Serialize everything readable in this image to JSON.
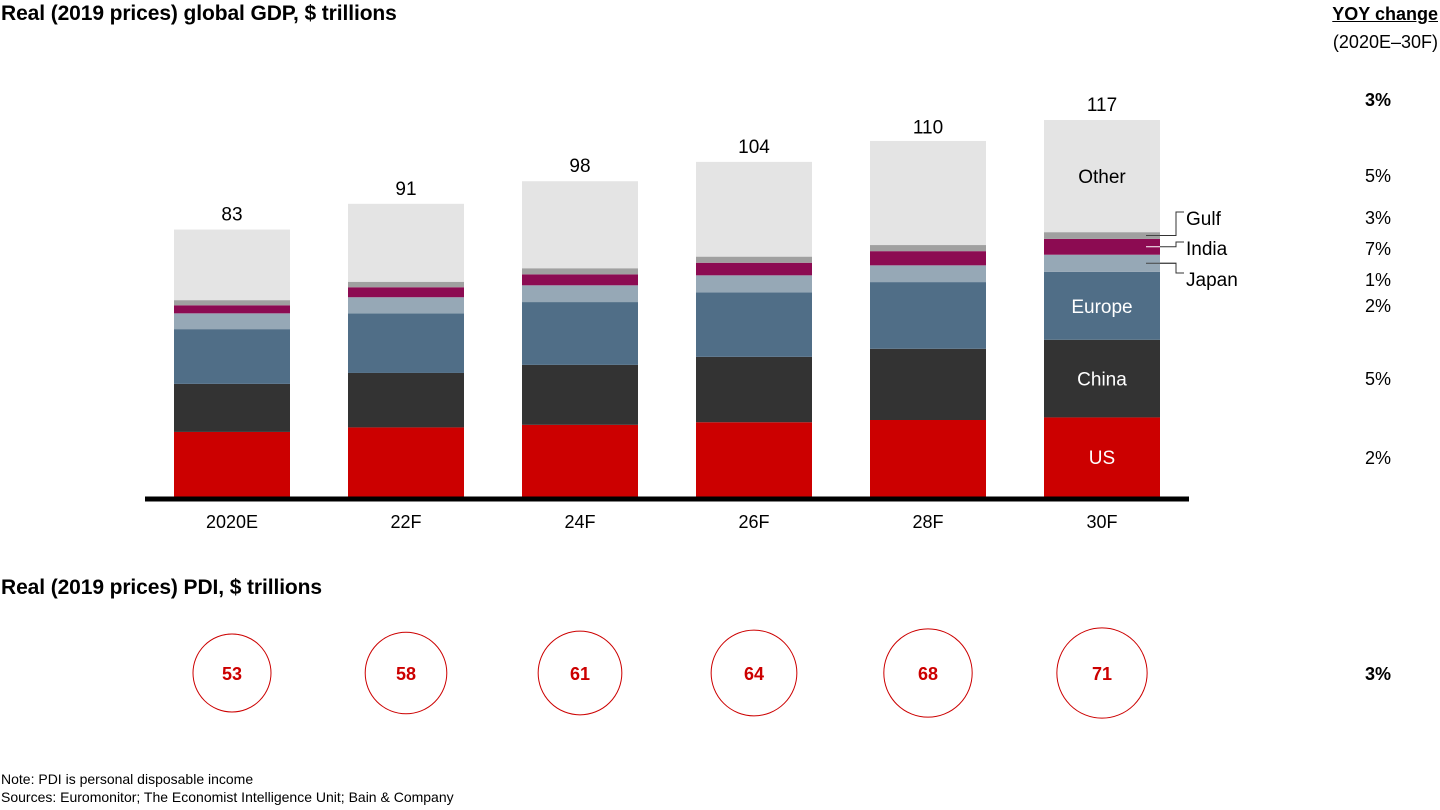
{
  "gdp_title": "Real (2019 prices) global GDP, $ trillions",
  "pdi_title": "Real (2019 prices) PDI, $ trillions",
  "yoy_header": {
    "title": "YOY change",
    "period": "(2020E–30F)"
  },
  "notes": {
    "note": "Note: PDI is personal disposable income",
    "sources": "Sources: Euromonitor; The Economist Intelligence Unit; Bain & Company"
  },
  "chart_data": [
    {
      "type": "bar",
      "stacked": true,
      "title": "Real (2019 prices) global GDP, $ trillions",
      "categories": [
        "2020E",
        "22F",
        "24F",
        "26F",
        "28F",
        "30F"
      ],
      "totals": [
        83,
        91,
        98,
        104,
        110,
        117
      ],
      "total_labels": [
        "83",
        "91",
        "98",
        "104",
        "110",
        "117"
      ],
      "series": [
        {
          "name": "US",
          "color": "#cc0000",
          "values": [
            20.2,
            21.6,
            22.4,
            23.2,
            23.9,
            24.7
          ],
          "yoy": "2%"
        },
        {
          "name": "China",
          "color": "#333333",
          "values": [
            14.9,
            16.9,
            18.6,
            20.3,
            22.1,
            24.1
          ],
          "yoy": "5%"
        },
        {
          "name": "Europe",
          "color": "#506e87",
          "values": [
            17.0,
            18.5,
            19.5,
            20.0,
            20.7,
            21.1
          ],
          "yoy": "2%"
        },
        {
          "name": "Japan",
          "color": "#96a8b6",
          "values": [
            4.9,
            5.0,
            5.2,
            5.3,
            5.2,
            5.3
          ],
          "yoy": "1%"
        },
        {
          "name": "India",
          "color": "#8c0b52",
          "values": [
            2.5,
            3.1,
            3.4,
            3.9,
            4.4,
            4.9
          ],
          "yoy": "7%"
        },
        {
          "name": "Gulf",
          "color": "#a0a0a0",
          "values": [
            1.6,
            1.7,
            1.9,
            1.9,
            1.9,
            2.1
          ],
          "yoy": "3%"
        },
        {
          "name": "Other",
          "color": "#e4e4e4",
          "values": [
            21.9,
            24.2,
            27.0,
            29.4,
            32.3,
            34.8
          ],
          "yoy": "5%"
        }
      ],
      "total_yoy": "3%",
      "inside_labels": [
        "US",
        "China",
        "Europe",
        "Other"
      ],
      "callout_labels": [
        "Gulf",
        "India",
        "Japan"
      ],
      "label_bar": "30F",
      "ylim": [
        0,
        125
      ],
      "xlabel": "",
      "ylabel": "",
      "grid": false,
      "legend": "labels inside/right of last bar"
    },
    {
      "type": "scatter",
      "title": "Real (2019 prices) PDI, $ trillions",
      "marker": "circle-outline",
      "color": "#cc0000",
      "categories": [
        "2020E",
        "22F",
        "24F",
        "26F",
        "28F",
        "30F"
      ],
      "values": [
        53,
        58,
        61,
        64,
        68,
        71
      ],
      "labels": [
        "53",
        "58",
        "61",
        "64",
        "68",
        "71"
      ],
      "yoy": "3%"
    }
  ]
}
